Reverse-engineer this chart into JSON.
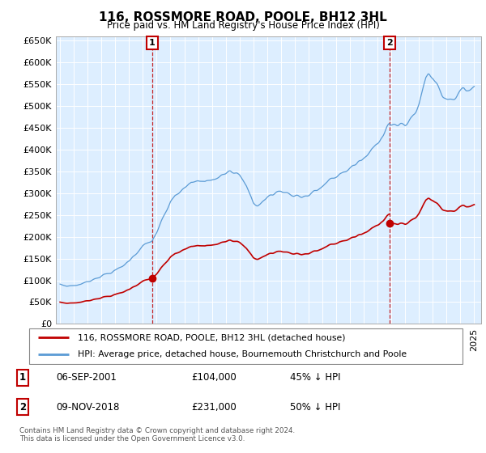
{
  "title": "116, ROSSMORE ROAD, POOLE, BH12 3HL",
  "subtitle": "Price paid vs. HM Land Registry's House Price Index (HPI)",
  "legend_line1": "116, ROSSMORE ROAD, POOLE, BH12 3HL (detached house)",
  "legend_line2": "HPI: Average price, detached house, Bournemouth Christchurch and Poole",
  "footnote": "Contains HM Land Registry data © Crown copyright and database right 2024.\nThis data is licensed under the Open Government Licence v3.0.",
  "sale1_date": "06-SEP-2001",
  "sale1_price": "£104,000",
  "sale1_hpi": "45% ↓ HPI",
  "sale1_year": 2001.67,
  "sale1_value": 104000,
  "sale2_date": "09-NOV-2018",
  "sale2_price": "£231,000",
  "sale2_hpi": "50% ↓ HPI",
  "sale2_year": 2018.85,
  "sale2_value": 231000,
  "hpi_color": "#5b9bd5",
  "price_color": "#c00000",
  "background_color": "#ffffff",
  "chart_bg_color": "#ddeeff",
  "grid_color": "#bbbbbb",
  "ylim": [
    0,
    660000
  ],
  "yticks": [
    0,
    50000,
    100000,
    150000,
    200000,
    250000,
    300000,
    350000,
    400000,
    450000,
    500000,
    550000,
    600000,
    650000
  ],
  "ytick_labels": [
    "£0",
    "£50K",
    "£100K",
    "£150K",
    "£200K",
    "£250K",
    "£300K",
    "£350K",
    "£400K",
    "£450K",
    "£500K",
    "£550K",
    "£600K",
    "£650K"
  ],
  "xlim_start": 1994.7,
  "xlim_end": 2025.5
}
